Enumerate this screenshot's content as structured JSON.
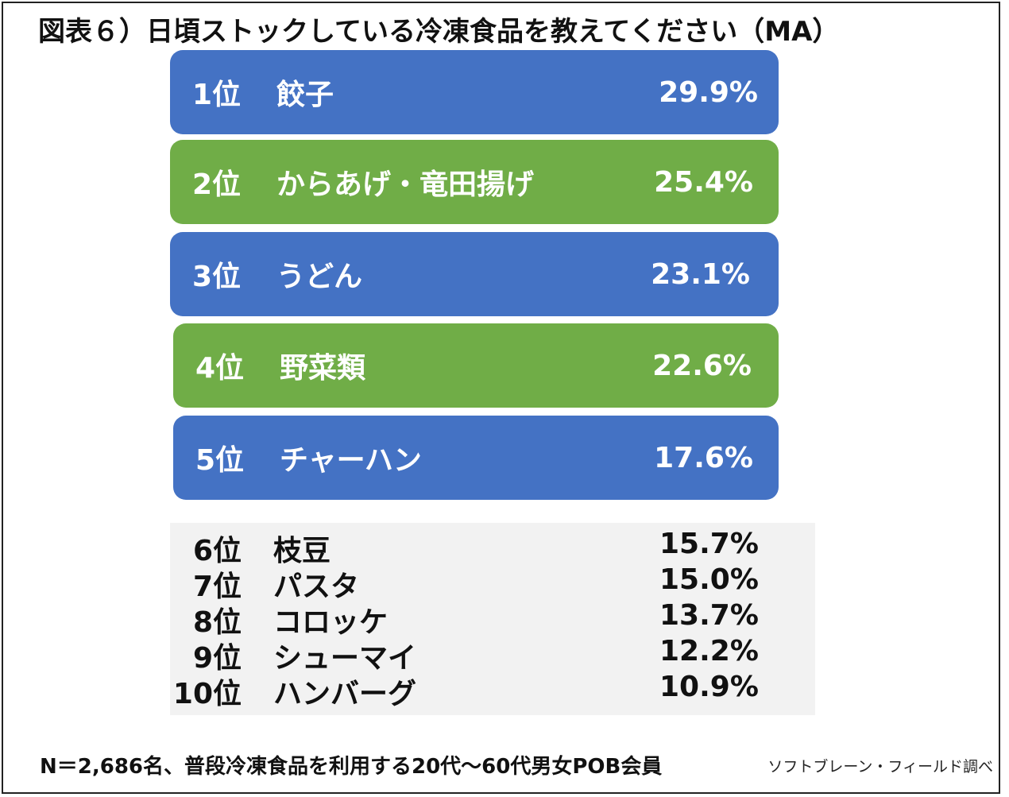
{
  "title": "図表６）日頃ストックしている冷凍食品を教えてください（MA）",
  "colors": {
    "blue": "#4472c4",
    "green": "#70ad47",
    "rest_bg": "#f2f2f2"
  },
  "chart_data": {
    "type": "table",
    "title": "図表６）日頃ストックしている冷凍食品を教えてください（MA）",
    "top": [
      {
        "rank": "1位",
        "label": "餃子",
        "value": "29.9%",
        "color": "#4472c4"
      },
      {
        "rank": "2位",
        "label": "からあげ・竜田揚げ",
        "value": "25.4%",
        "color": "#70ad47"
      },
      {
        "rank": "3位",
        "label": "うどん",
        "value": "23.1%",
        "color": "#4472c4"
      },
      {
        "rank": "4位",
        "label": "野菜類",
        "value": "22.6%",
        "color": "#70ad47"
      },
      {
        "rank": "5位",
        "label": "チャーハン",
        "value": "17.6%",
        "color": "#4472c4"
      }
    ],
    "rest": [
      {
        "rank": "6位",
        "label": "枝豆",
        "value": "15.7%"
      },
      {
        "rank": "7位",
        "label": "パスタ",
        "value": "15.0%"
      },
      {
        "rank": "8位",
        "label": "コロッケ",
        "value": "13.7%"
      },
      {
        "rank": "9位",
        "label": "シューマイ",
        "value": "12.2%"
      },
      {
        "rank": "10位",
        "label": "ハンバーグ",
        "value": "10.9%"
      }
    ]
  },
  "footnote": "N＝2,686名、普段冷凍食品を利用する20代～60代男女POB会員",
  "source": "ソフトブレーン・フィールド調べ"
}
